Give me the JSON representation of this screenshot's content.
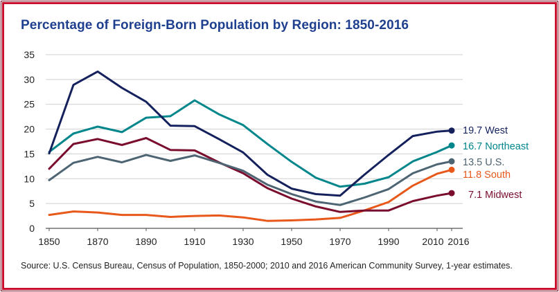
{
  "chart_data": {
    "type": "line",
    "title": "Percentage of Foreign-Born Population by Region: 1850-2016",
    "source": "Source: U.S. Census Bureau, Census of Population, 1850-2000; 2010 and 2016 American Community Survey, 1-year estimates.",
    "x": [
      1850,
      1860,
      1870,
      1880,
      1890,
      1900,
      1910,
      1920,
      1930,
      1940,
      1950,
      1960,
      1970,
      1980,
      1990,
      2000,
      2010,
      2016
    ],
    "x_ticks": [
      "1850",
      "1870",
      "1890",
      "1910",
      "1930",
      "1950",
      "1970",
      "1990",
      "2010",
      "2016"
    ],
    "x_tick_values": [
      1850,
      1870,
      1890,
      1910,
      1930,
      1950,
      1970,
      1990,
      2010,
      2016
    ],
    "y_ticks": [
      "0",
      "5",
      "10",
      "15",
      "20",
      "25",
      "30",
      "35"
    ],
    "xlim": [
      1850,
      2016
    ],
    "ylim": [
      0,
      35
    ],
    "grid": "horizontal",
    "legend": "end-labels",
    "series": [
      {
        "key": "south",
        "label": "11.8 South",
        "color": "#e8581a",
        "values": [
          2.7,
          3.4,
          3.2,
          2.7,
          2.7,
          2.3,
          2.5,
          2.6,
          2.2,
          1.5,
          1.6,
          1.8,
          2.1,
          3.6,
          5.3,
          8.6,
          11.0,
          11.8
        ]
      },
      {
        "key": "midwest",
        "label": "7.1 Midwest",
        "color": "#7a0d2e",
        "values": [
          12.0,
          17.0,
          18.0,
          16.8,
          18.2,
          15.8,
          15.7,
          13.3,
          11.1,
          8.1,
          6.0,
          4.4,
          3.3,
          3.6,
          3.6,
          5.5,
          6.6,
          7.1
        ]
      },
      {
        "key": "us",
        "label": "13.5 U.S.",
        "color": "#4d6473",
        "values": [
          9.7,
          13.2,
          14.4,
          13.3,
          14.8,
          13.6,
          14.7,
          13.2,
          11.6,
          8.8,
          6.9,
          5.4,
          4.7,
          6.2,
          7.9,
          11.1,
          12.9,
          13.5
        ]
      },
      {
        "key": "northeast",
        "label": "16.7 Northeast",
        "color": "#00868b",
        "values": [
          15.4,
          19.1,
          20.5,
          19.4,
          22.3,
          22.6,
          25.8,
          23.0,
          20.8,
          17.0,
          13.4,
          10.2,
          8.4,
          9.0,
          10.3,
          13.5,
          15.4,
          16.7
        ]
      },
      {
        "key": "west",
        "label": "19.7 West",
        "color": "#14215c",
        "values": [
          15.1,
          28.9,
          31.6,
          28.3,
          25.5,
          20.7,
          20.6,
          18.0,
          15.3,
          10.8,
          8.0,
          6.9,
          6.6,
          10.8,
          14.8,
          18.6,
          19.5,
          19.7
        ]
      }
    ]
  }
}
